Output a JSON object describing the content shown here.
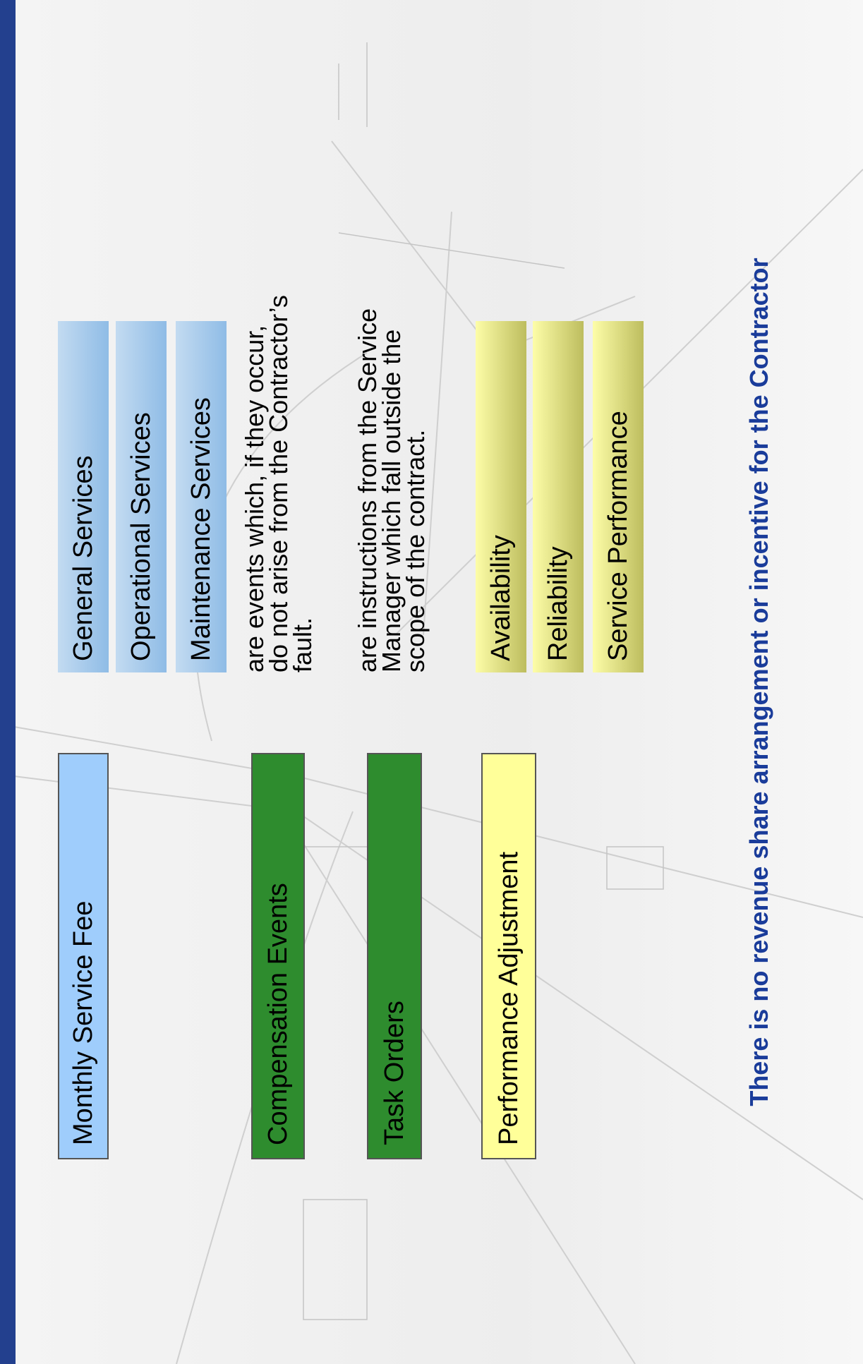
{
  "rows": [
    {
      "sign": "+",
      "label": "Monthly Service Fee"
    },
    {
      "sign": "+",
      "label": "Compensation Events"
    },
    {
      "sign": "+",
      "label": "Task Orders"
    },
    {
      "sign": "—",
      "label": "Performance Adjustment"
    }
  ],
  "fee_components": [
    "General Services",
    "Operational Services",
    "Maintenance Services"
  ],
  "descriptions": {
    "compensation_events": "are events which, if they occur,\ndo not arise from the Contractor’s\nfault.",
    "task_orders": "are instructions from the Service\nManager which fall outside the\nscope of the contract."
  },
  "performance_components": [
    "Availability",
    "Reliability",
    "Service Performance"
  ],
  "footer": "There is no revenue share arrangement or incentive for the Contractor",
  "colors": {
    "stripe": "#23408e",
    "fee_blue": "#9fcdfc",
    "events_green": "#2e8c2e",
    "performance_yellow": "#ffff99",
    "footer_text": "#1a3c9a"
  }
}
